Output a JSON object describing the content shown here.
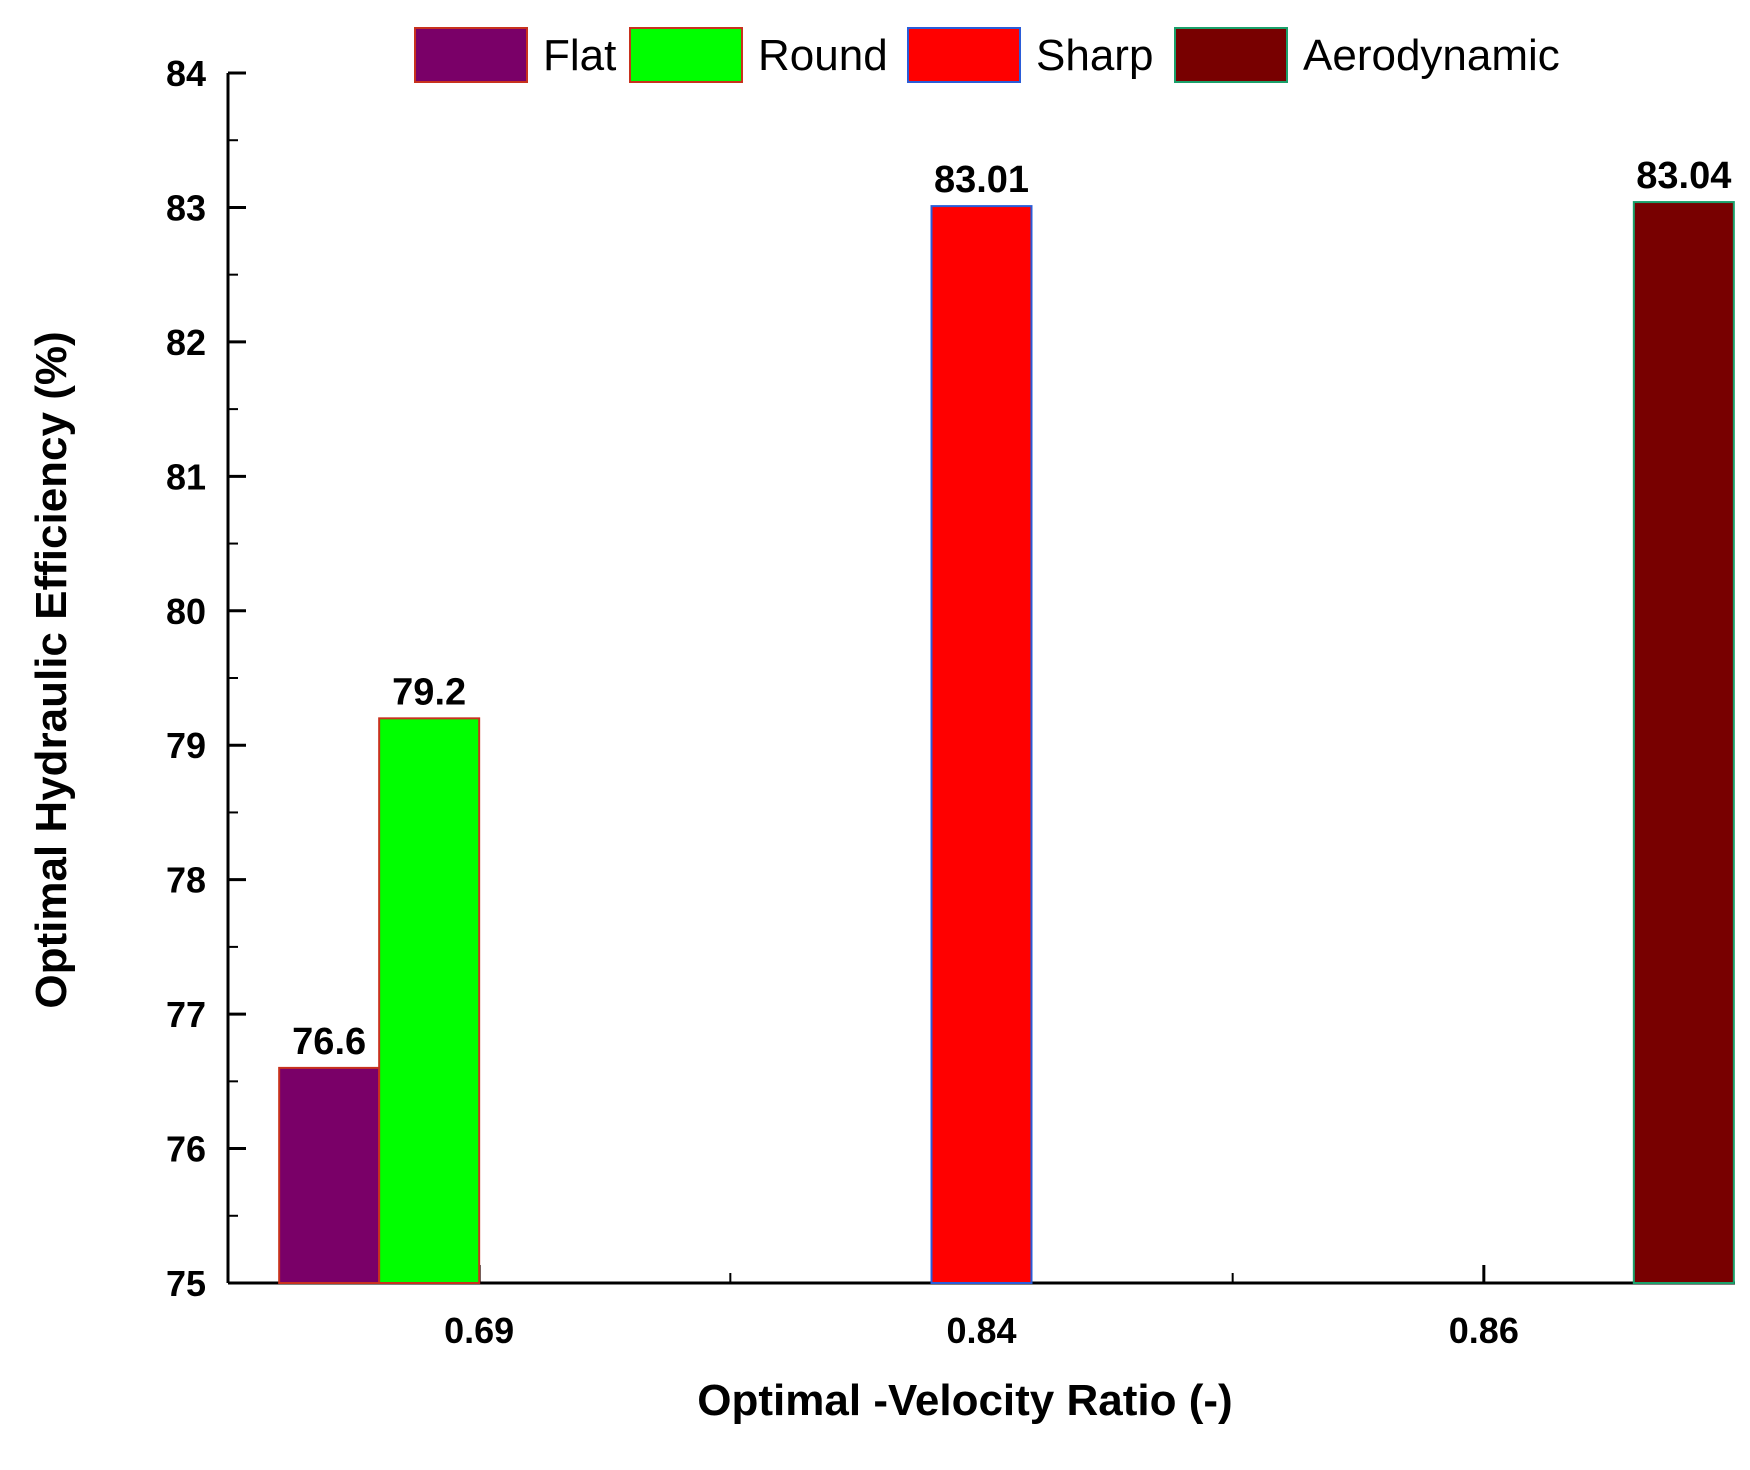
{
  "chart_data": {
    "type": "bar",
    "title": "",
    "xlabel": "Optimal -Velocity Ratio (-)",
    "ylabel": "Optimal Hydraulic Efficiency (%)",
    "ylim": [
      75,
      84
    ],
    "yticks": [
      "75",
      "76",
      "77",
      "78",
      "79",
      "80",
      "81",
      "82",
      "83",
      "84"
    ],
    "categories": [
      "0.69",
      "0.84",
      "0.86"
    ],
    "grid": false,
    "legend_position": "top",
    "series": [
      {
        "name": "Flat",
        "color": "#7a0068",
        "edge": "#c8321e",
        "category": "0.69",
        "value": 76.6,
        "label": "76.6"
      },
      {
        "name": "Round",
        "color": "#00ff00",
        "edge": "#c8321e",
        "category": "0.69",
        "value": 79.2,
        "label": "79.2"
      },
      {
        "name": "Sharp",
        "color": "#ff0000",
        "edge": "#2a5cd8",
        "category": "0.84",
        "value": 83.01,
        "label": "83.01"
      },
      {
        "name": "Aerodynamic",
        "color": "#780000",
        "edge": "#1aa06a",
        "category": "0.86",
        "value": 83.04,
        "label": "83.04"
      }
    ]
  }
}
